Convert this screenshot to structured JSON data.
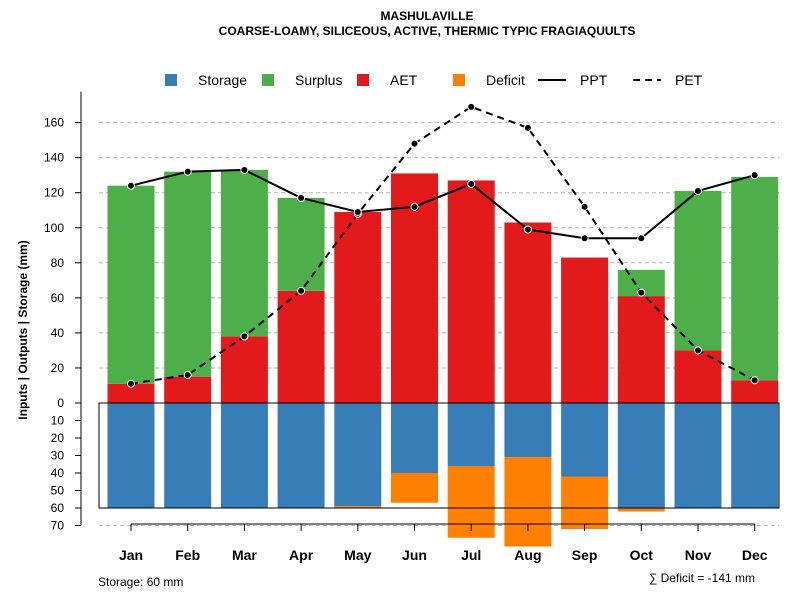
{
  "chart_data": {
    "type": "bar",
    "title": "MASHULAVILLE",
    "subtitle": "COARSE-LOAMY, SILICEOUS, ACTIVE, THERMIC TYPIC FRAGIAQUULTS",
    "ylabel": "Inputs | Outputs | Storage    (mm)",
    "categories": [
      "Jan",
      "Feb",
      "Mar",
      "Apr",
      "May",
      "Jun",
      "Jul",
      "Aug",
      "Sep",
      "Oct",
      "Nov",
      "Dec"
    ],
    "ylim_top": [
      0,
      170
    ],
    "ylim_bottom": [
      0,
      70
    ],
    "yticks_top": [
      0,
      20,
      40,
      60,
      80,
      100,
      120,
      140,
      160
    ],
    "yticks_bottom": [
      10,
      20,
      30,
      40,
      50,
      60,
      70
    ],
    "series": [
      {
        "name": "AET",
        "color": "#e31a1c",
        "values": [
          11,
          15,
          38,
          64,
          109,
          131,
          127,
          103,
          83,
          61,
          30,
          13
        ]
      },
      {
        "name": "Surplus",
        "color": "#4daf4a",
        "values": [
          113,
          117,
          95,
          53,
          0,
          0,
          0,
          0,
          0,
          15,
          91,
          116
        ]
      },
      {
        "name": "Storage",
        "color": "#377eb8",
        "values": [
          60,
          60,
          60,
          60,
          59,
          40,
          36,
          31,
          42,
          60,
          60,
          60
        ]
      },
      {
        "name": "Deficit",
        "color": "#ff7f00",
        "values": [
          0,
          0,
          0,
          0,
          1,
          17,
          41,
          51,
          30,
          2,
          0,
          0
        ]
      },
      {
        "name": "PPT",
        "color": "#000000",
        "style": "solid",
        "values": [
          124,
          132,
          133,
          117,
          109,
          112,
          125,
          99,
          94,
          94,
          121,
          130
        ]
      },
      {
        "name": "PET",
        "color": "#000000",
        "style": "dashed",
        "values": [
          11,
          16,
          38,
          64,
          108,
          148,
          169,
          157,
          112,
          63,
          30,
          13
        ]
      }
    ],
    "legend": [
      "Storage",
      "Surplus",
      "AET",
      "Deficit",
      "PPT",
      "PET"
    ],
    "legend_position": "top",
    "storage_note": "Storage: 60 mm",
    "deficit_note": "∑ Deficit = -141 mm",
    "grid": true
  }
}
